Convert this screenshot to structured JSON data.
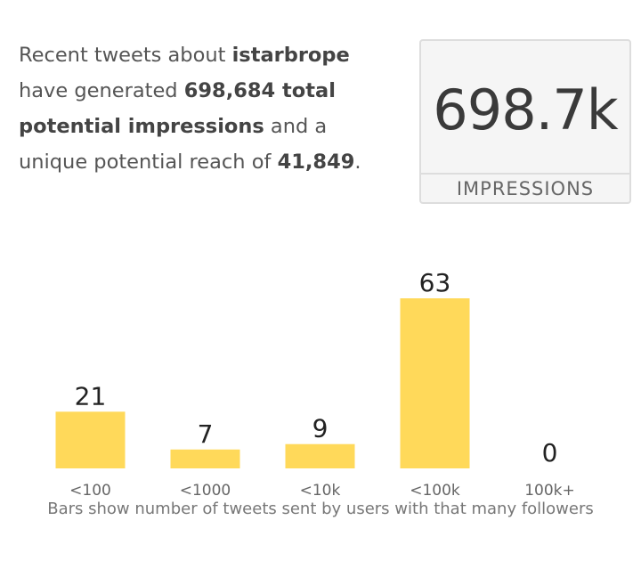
{
  "summary": {
    "prefix": "Recent tweets about ",
    "topic": "istarbrope",
    "middle": " have generated ",
    "impressions_text": "698,684 total potential impressions",
    "middle2": " and a unique potential reach of ",
    "reach": "41,849",
    "suffix": "."
  },
  "stat_card": {
    "value": "698.7k",
    "label": "IMPRESSIONS"
  },
  "colors": {
    "bar": "#FFD95A",
    "value_text": "#222222",
    "tick_text": "#666666"
  },
  "chart_data": {
    "type": "bar",
    "categories": [
      "<100",
      "<1000",
      "<10k",
      "<100k",
      "100k+"
    ],
    "values": [
      21,
      7,
      9,
      63,
      0
    ],
    "title": "",
    "xlabel": "Bars show number of tweets sent by users with that many followers",
    "ylabel": "",
    "ylim": [
      0,
      63
    ],
    "grid": false,
    "legend": "none"
  }
}
